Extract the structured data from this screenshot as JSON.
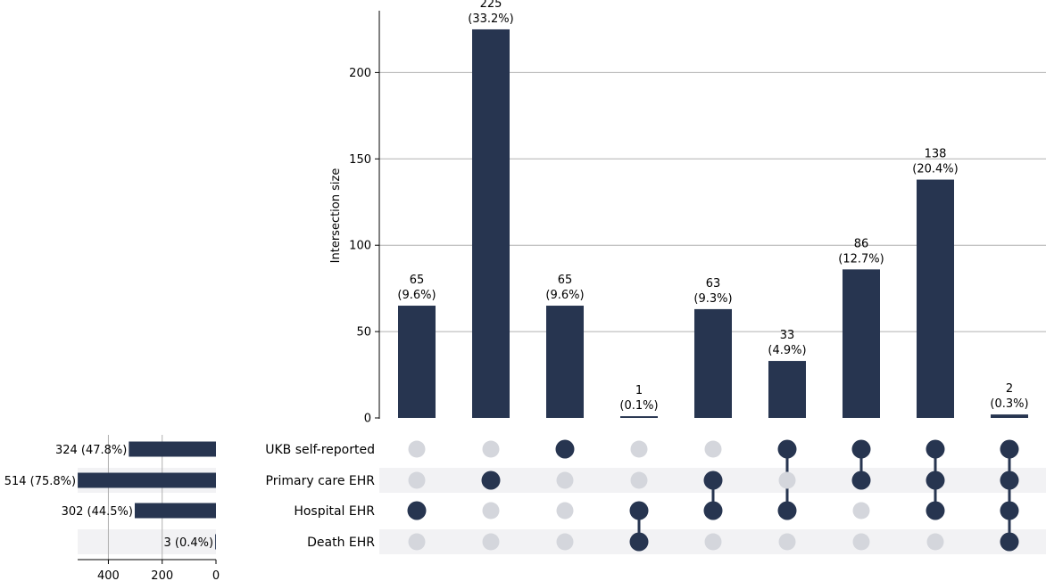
{
  "chart_data": {
    "type": "upset",
    "intersections": {
      "ylabel": "Intersection size",
      "ylim": [
        0,
        235
      ],
      "yticks": [
        0,
        50,
        100,
        150,
        200
      ],
      "grid": true,
      "bars": [
        {
          "value": 65,
          "label_count": "65",
          "label_pct": "(9.6%)",
          "members": [
            false,
            false,
            true,
            false
          ]
        },
        {
          "value": 225,
          "label_count": "225",
          "label_pct": "(33.2%)",
          "members": [
            false,
            true,
            false,
            false
          ]
        },
        {
          "value": 65,
          "label_count": "65",
          "label_pct": "(9.6%)",
          "members": [
            true,
            false,
            false,
            false
          ]
        },
        {
          "value": 1,
          "label_count": "1",
          "label_pct": "(0.1%)",
          "members": [
            false,
            false,
            true,
            true
          ]
        },
        {
          "value": 63,
          "label_count": "63",
          "label_pct": "(9.3%)",
          "members": [
            false,
            true,
            true,
            false
          ]
        },
        {
          "value": 33,
          "label_count": "33",
          "label_pct": "(4.9%)",
          "members": [
            true,
            false,
            true,
            false
          ]
        },
        {
          "value": 86,
          "label_count": "86",
          "label_pct": "(12.7%)",
          "members": [
            true,
            true,
            false,
            false
          ]
        },
        {
          "value": 138,
          "label_count": "138",
          "label_pct": "(20.4%)",
          "members": [
            true,
            true,
            true,
            false
          ]
        },
        {
          "value": 2,
          "label_count": "2",
          "label_pct": "(0.3%)",
          "members": [
            true,
            true,
            true,
            true
          ]
        }
      ]
    },
    "sets": [
      {
        "name": "UKB self-reported",
        "size": 324,
        "label": "324 (47.8%)"
      },
      {
        "name": "Primary care EHR",
        "size": 514,
        "label": "514 (75.8%)"
      },
      {
        "name": "Hospital EHR",
        "size": 302,
        "label": "302 (44.5%)"
      },
      {
        "name": "Death EHR",
        "size": 3,
        "label": "3 (0.4%)"
      }
    ],
    "set_size_axis": {
      "xticks": [
        400,
        200,
        0
      ]
    },
    "colors": {
      "bar": "#273550",
      "dot_active": "#273550",
      "dot_inactive": "#d4d6dc",
      "row_shade": "#f2f2f4",
      "grid": "#b0b0b0"
    }
  }
}
